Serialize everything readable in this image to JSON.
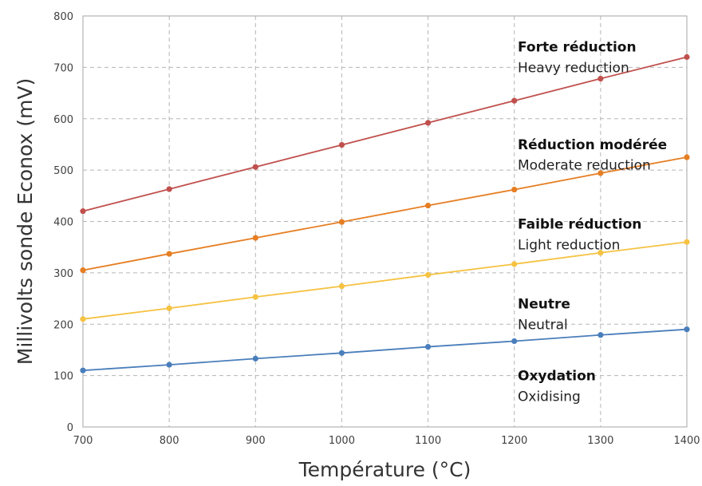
{
  "chart_data": {
    "type": "line",
    "title": "",
    "xlabel": "Température (°C)",
    "ylabel": "Millivolts sonde Econox (mV)",
    "xlim": [
      700,
      1400
    ],
    "ylim": [
      0,
      800
    ],
    "x": [
      700,
      800,
      900,
      1000,
      1100,
      1200,
      1300,
      1400
    ],
    "x_ticks": [
      "700",
      "800",
      "900",
      "1000",
      "1100",
      "1200",
      "1300",
      "1400"
    ],
    "y_ticks": [
      "0",
      "100",
      "200",
      "300",
      "400",
      "500",
      "600",
      "700",
      "800"
    ],
    "grid": true,
    "series": [
      {
        "values": [
          420,
          463,
          506,
          549,
          592,
          635,
          678,
          720
        ],
        "color": "#c0504d"
      },
      {
        "values": [
          305,
          337,
          368,
          399,
          431,
          462,
          494,
          525
        ],
        "color": "#e67e22"
      },
      {
        "values": [
          210,
          231,
          253,
          274,
          296,
          317,
          339,
          360
        ],
        "color": "#f5c242"
      },
      {
        "values": [
          110,
          121,
          133,
          144,
          156,
          167,
          179,
          190
        ],
        "color": "#4a7ebb"
      }
    ],
    "annotations": [
      {
        "bold": "Forte réduction",
        "regular": "Heavy reduction",
        "y_bold": 740,
        "y_regular": 700
      },
      {
        "bold": "Réduction modérée",
        "regular": "Moderate reduction",
        "y_bold": 550,
        "y_regular": 510
      },
      {
        "bold": "Faible réduction",
        "regular": "Light reduction",
        "y_bold": 395,
        "y_regular": 355
      },
      {
        "bold": "Neutre",
        "regular": "Neutral",
        "y_bold": 240,
        "y_regular": 200
      },
      {
        "bold": "Oxydation",
        "regular": "Oxidising",
        "y_bold": 100,
        "y_regular": 60
      }
    ]
  }
}
